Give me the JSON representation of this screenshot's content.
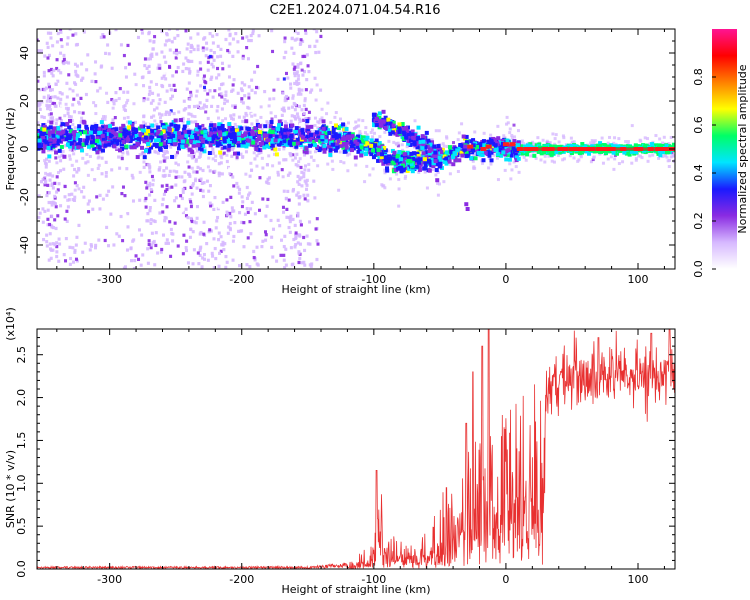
{
  "title": "C2E1.2024.071.04.54.R16",
  "chart_data": [
    {
      "type": "heatmap",
      "xlabel": "Height of straight line (km)",
      "ylabel": "Frequency (Hz)",
      "xlim": [
        -355,
        128
      ],
      "ylim": [
        -50,
        50
      ],
      "xticks": [
        -300,
        -200,
        -100,
        0,
        100
      ],
      "yticks": [
        -40,
        -20,
        0,
        20,
        40
      ],
      "colorbar": {
        "label": "Normalized spectral amplitude",
        "ticks": [
          0.0,
          0.2,
          0.4,
          0.6,
          0.8
        ],
        "range": [
          0,
          1
        ],
        "colormap": [
          "#ffffff",
          "#d6b8ff",
          "#8a2be2",
          "#1a1aff",
          "#00e5ff",
          "#00ff66",
          "#ffff00",
          "#ff8000",
          "#ff0000",
          "#ff1493"
        ]
      },
      "center_frequency_track": [
        {
          "x": -355,
          "f": 4
        },
        {
          "x": -300,
          "f": 5
        },
        {
          "x": -250,
          "f": 5
        },
        {
          "x": -200,
          "f": 5
        },
        {
          "x": -150,
          "f": 5
        },
        {
          "x": -120,
          "f": 4
        },
        {
          "x": -100,
          "f": 1
        },
        {
          "x": -90,
          "f": -4
        },
        {
          "x": -80,
          "f": -6
        },
        {
          "x": -60,
          "f": -5
        },
        {
          "x": -45,
          "f": -3
        },
        {
          "x": -30,
          "f": 0
        },
        {
          "x": -10,
          "f": 1
        },
        {
          "x": 0,
          "f": 1
        },
        {
          "x": 10,
          "f": 0
        },
        {
          "x": 128,
          "f": 0
        }
      ],
      "upper_branch_track": [
        {
          "x": -100,
          "f": 13
        },
        {
          "x": -90,
          "f": 10
        },
        {
          "x": -80,
          "f": 7
        },
        {
          "x": -70,
          "f": 4
        },
        {
          "x": -60,
          "f": 2
        },
        {
          "x": -50,
          "f": -2
        }
      ]
    },
    {
      "type": "line",
      "xlabel": "Height of straight line (km)",
      "ylabel": "SNR (10 * v/v)",
      "y_multiplier": "(x10⁴)",
      "xlim": [
        -355,
        128
      ],
      "ylim": [
        0,
        2.8
      ],
      "xticks": [
        -300,
        -200,
        -100,
        0,
        100
      ],
      "yticks": [
        0.0,
        0.5,
        1.0,
        1.5,
        2.0,
        2.5
      ],
      "color": "#e83030",
      "envelope": [
        {
          "x": -355,
          "y": 0.02
        },
        {
          "x": -150,
          "y": 0.02
        },
        {
          "x": -120,
          "y": 0.05
        },
        {
          "x": -100,
          "y": 0.25
        },
        {
          "x": -95,
          "y": 0.8
        },
        {
          "x": -90,
          "y": 0.35
        },
        {
          "x": -80,
          "y": 0.3
        },
        {
          "x": -70,
          "y": 0.2
        },
        {
          "x": -60,
          "y": 0.35
        },
        {
          "x": -50,
          "y": 0.7
        },
        {
          "x": -40,
          "y": 0.9
        },
        {
          "x": -30,
          "y": 1.1
        },
        {
          "x": -20,
          "y": 1.3
        },
        {
          "x": -15,
          "y": 1.7
        },
        {
          "x": -10,
          "y": 1.6
        },
        {
          "x": 0,
          "y": 1.5
        },
        {
          "x": 10,
          "y": 1.7
        },
        {
          "x": 20,
          "y": 1.9
        },
        {
          "x": 30,
          "y": 2.1
        },
        {
          "x": 50,
          "y": 2.25
        },
        {
          "x": 80,
          "y": 2.3
        },
        {
          "x": 128,
          "y": 2.25
        }
      ],
      "peaks": [
        {
          "x": -98,
          "y": 1.15
        },
        {
          "x": -45,
          "y": 0.95
        },
        {
          "x": -30,
          "y": 1.7
        },
        {
          "x": -25,
          "y": 2.3
        },
        {
          "x": -18,
          "y": 2.6
        },
        {
          "x": -13,
          "y": 2.8
        },
        {
          "x": 70,
          "y": 2.7
        },
        {
          "x": 110,
          "y": 2.75
        },
        {
          "x": 124,
          "y": 2.8
        }
      ]
    }
  ]
}
